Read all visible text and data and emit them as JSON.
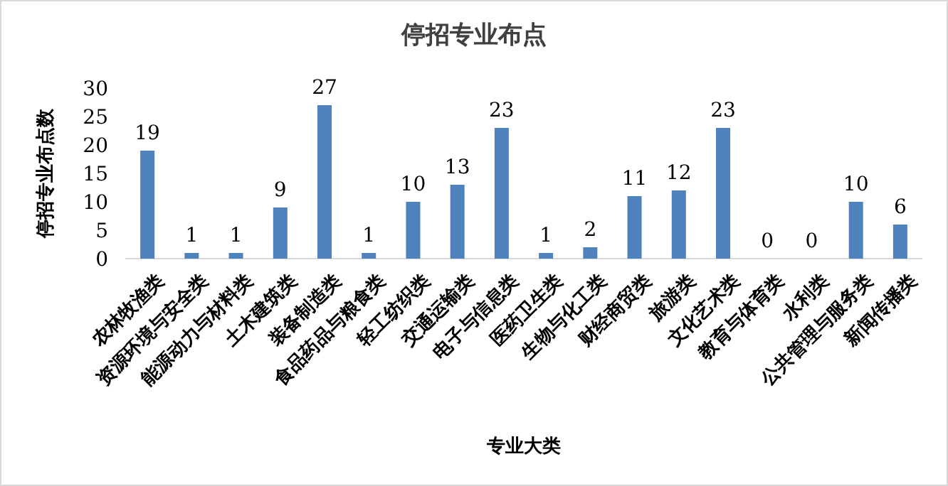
{
  "chart_data": {
    "type": "bar",
    "title": "停招专业布点",
    "xlabel": "专业大类",
    "ylabel": "停招专业布点数",
    "categories": [
      "农林牧渔类",
      "资源环境与安全类",
      "能源动力与材料类",
      "土木建筑类",
      "装备制造类",
      "食品药品与粮食类",
      "轻工纺织类",
      "交通运输类",
      "电子与信息类",
      "医药卫生类",
      "生物与化工类",
      "财经商贸类",
      "旅游类",
      "文化艺术类",
      "教育与体育类",
      "水利类",
      "公共管理与服务类",
      "新闻传播类"
    ],
    "values": [
      19,
      1,
      1,
      9,
      27,
      1,
      10,
      13,
      23,
      1,
      2,
      11,
      12,
      23,
      0,
      0,
      10,
      6
    ],
    "color": "#4f81bd",
    "ylim": [
      0,
      30
    ],
    "yticks": [
      0,
      5,
      10,
      15,
      20,
      25,
      30
    ],
    "data_labels": true
  }
}
